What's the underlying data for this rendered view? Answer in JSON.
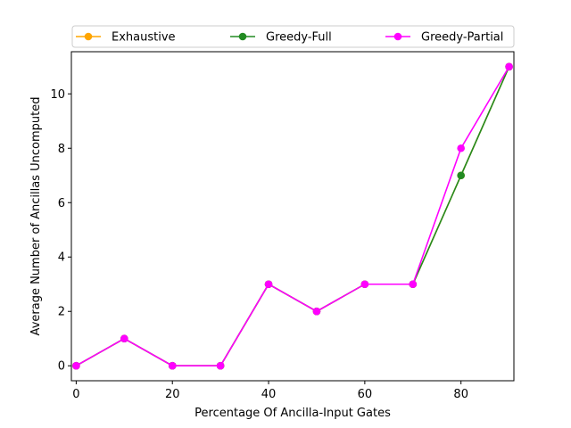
{
  "chart_data": {
    "type": "line",
    "title": "",
    "xlabel": "Percentage Of Ancilla-Input Gates",
    "ylabel": "Average Number of Ancillas Uncomputed",
    "xlim": [
      -1,
      91
    ],
    "ylim": [
      -0.55,
      11.55
    ],
    "xticks": [
      0,
      20,
      40,
      60,
      80
    ],
    "yticks": [
      0,
      2,
      4,
      6,
      8,
      10
    ],
    "grid": false,
    "legend_position": "top",
    "x": [
      0,
      10,
      20,
      30,
      40,
      50,
      60,
      70,
      80,
      90
    ],
    "series": [
      {
        "name": "Exhaustive",
        "color": "#ffa500",
        "values": [
          0,
          1,
          0,
          0,
          3,
          2,
          3,
          3,
          7,
          11
        ]
      },
      {
        "name": "Greedy-Full",
        "color": "#228b22",
        "values": [
          0,
          1,
          0,
          0,
          3,
          2,
          3,
          3,
          7,
          11
        ]
      },
      {
        "name": "Greedy-Partial",
        "color": "#ff00ff",
        "values": [
          0,
          1,
          0,
          0,
          3,
          2,
          3,
          3,
          8,
          11
        ]
      }
    ]
  }
}
